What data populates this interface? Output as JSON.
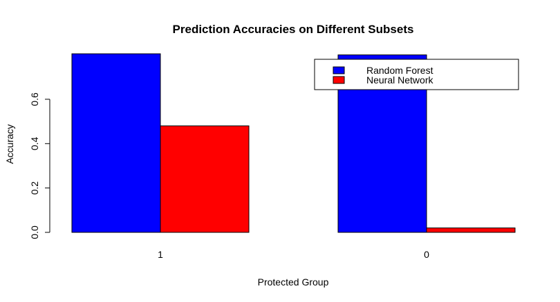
{
  "chart_data": {
    "type": "bar",
    "title": "Prediction Accuracies on Different Subsets",
    "xlabel": "Protected Group",
    "ylabel": "Accuracy",
    "categories": [
      "1",
      "0"
    ],
    "series": [
      {
        "name": "Random Forest",
        "color": "#0000ff",
        "values": [
          0.805,
          0.8
        ]
      },
      {
        "name": "Neural Network",
        "color": "#ff0000",
        "values": [
          0.48,
          0.02
        ]
      }
    ],
    "yticks": [
      "0.0",
      "0.2",
      "0.4",
      "0.6"
    ],
    "ylim": [
      0,
      0.805
    ],
    "legend_position": "top-right",
    "grid": false
  }
}
